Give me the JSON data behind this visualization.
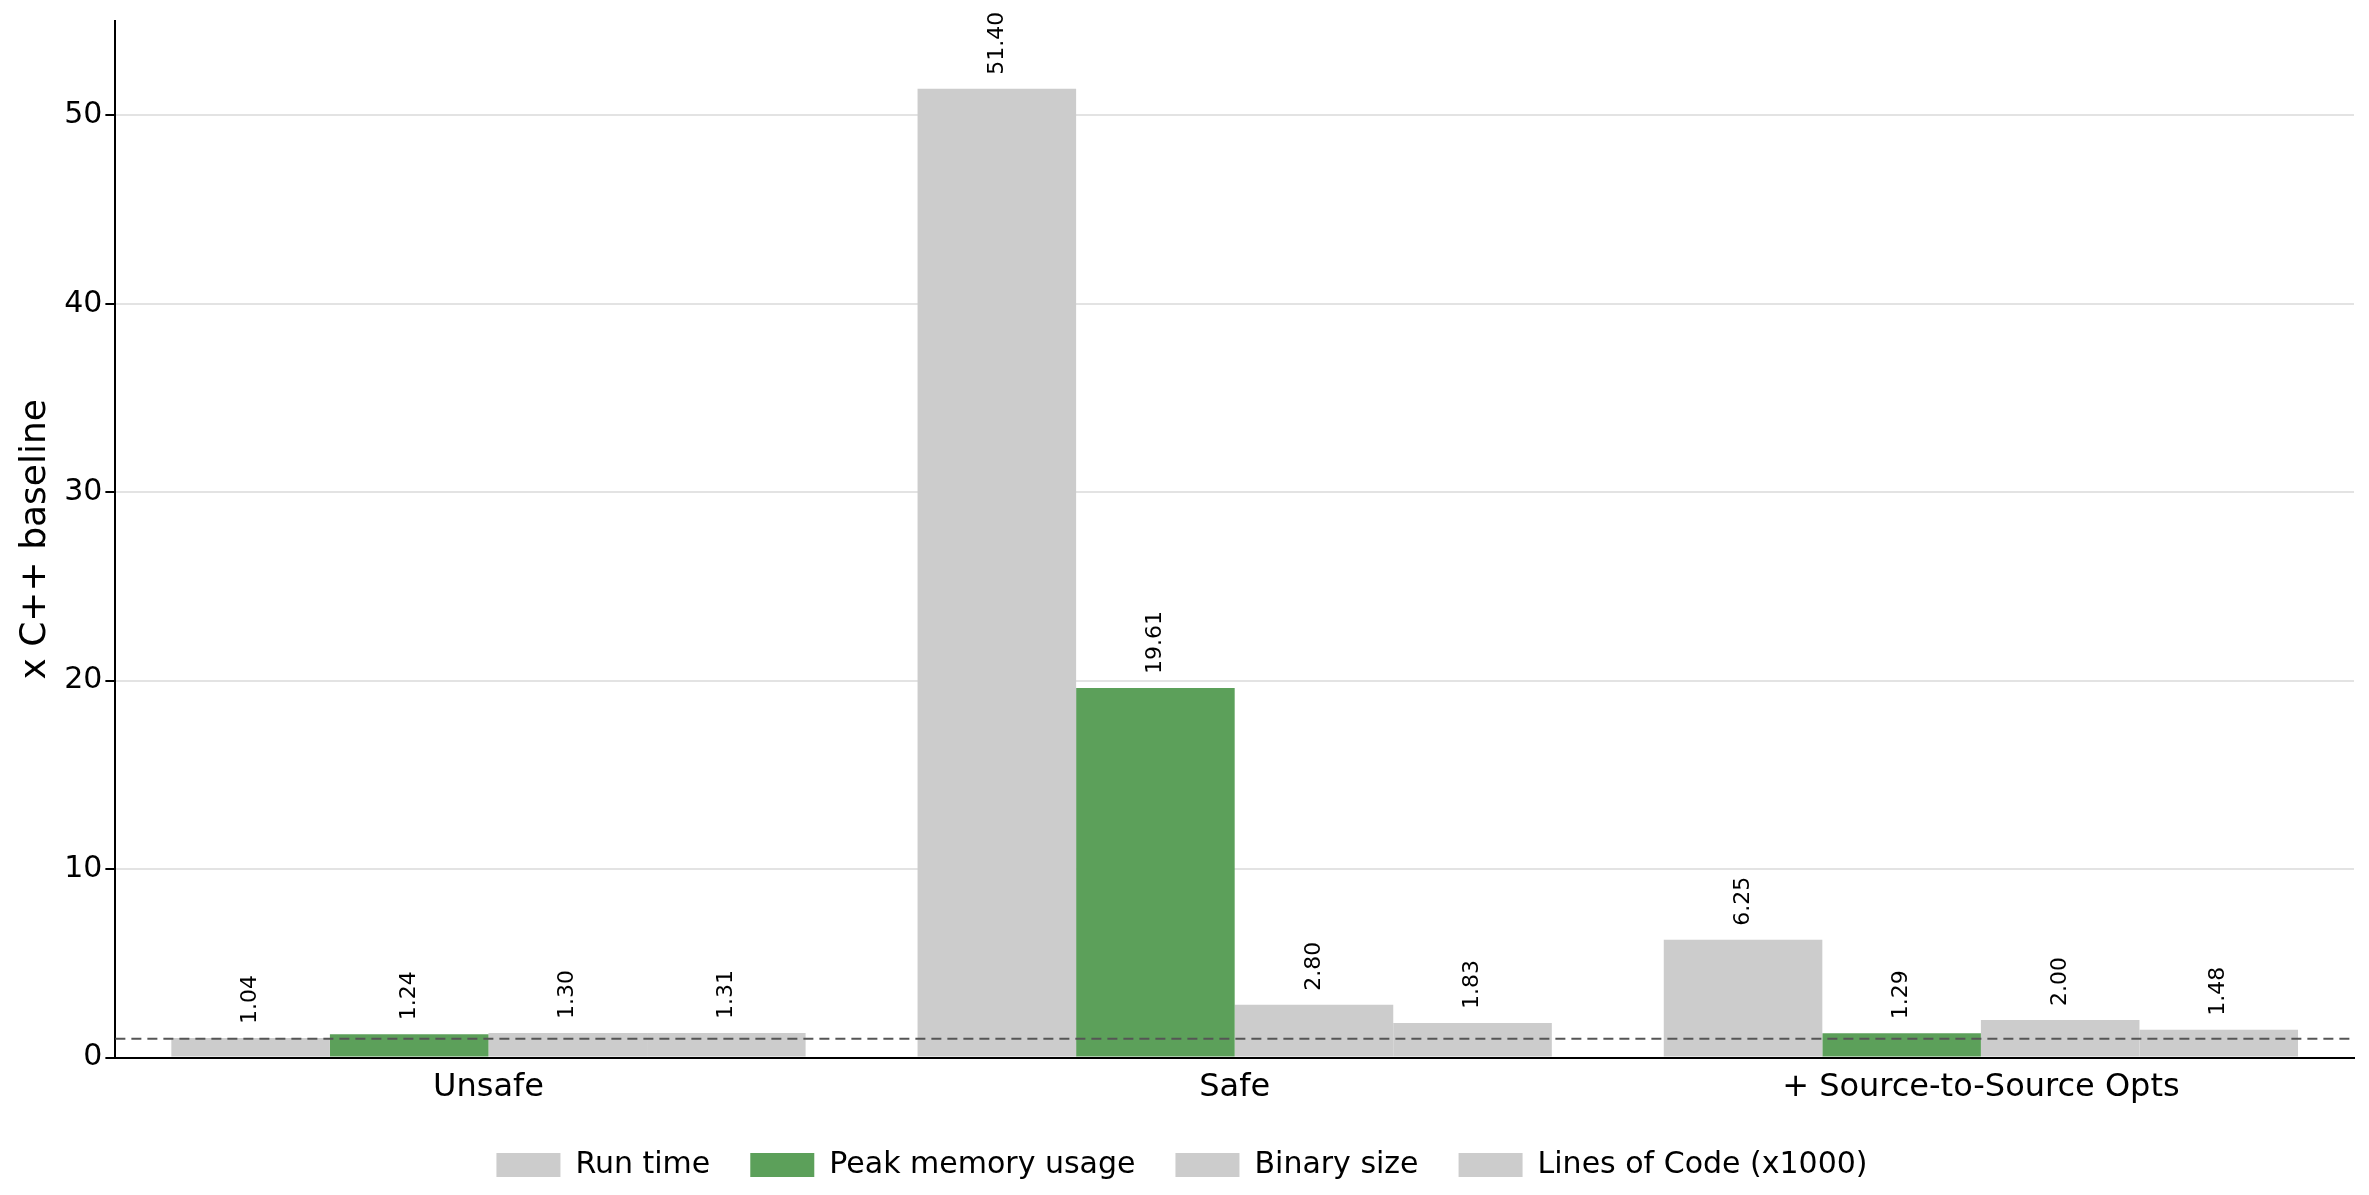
{
  "chart_data": {
    "type": "bar",
    "ylabel": "x C++ baseline",
    "categories": [
      "Unsafe",
      "Safe",
      "+ Source-to-Source Opts"
    ],
    "series": [
      {
        "name": "Run time",
        "color": "#cccccc",
        "values": [
          1.04,
          51.4,
          6.25
        ],
        "value_labels": [
          "1.04",
          "51.40",
          "6.25"
        ]
      },
      {
        "name": "Peak memory usage",
        "color": "#5ca05a",
        "values": [
          1.24,
          19.61,
          1.29
        ],
        "value_labels": [
          "1.24",
          "19.61",
          "1.29"
        ]
      },
      {
        "name": "Binary size",
        "color": "#cccccc",
        "values": [
          1.3,
          2.8,
          2.0
        ],
        "value_labels": [
          "1.30",
          "2.80",
          "2.00"
        ]
      },
      {
        "name": "Lines of Code (x1000)",
        "color": "#cccccc",
        "values": [
          1.31,
          1.83,
          1.48
        ],
        "value_labels": [
          "1.31",
          "1.83",
          "1.48"
        ]
      }
    ],
    "ylim": [
      0,
      55
    ],
    "yticks": [
      0,
      10,
      20,
      30,
      40,
      50
    ],
    "grid": "y",
    "legend": "bottom",
    "ref_lines": [
      {
        "axis": "y",
        "value": 1,
        "color": "#555555",
        "line_style": "dashed"
      }
    ]
  }
}
